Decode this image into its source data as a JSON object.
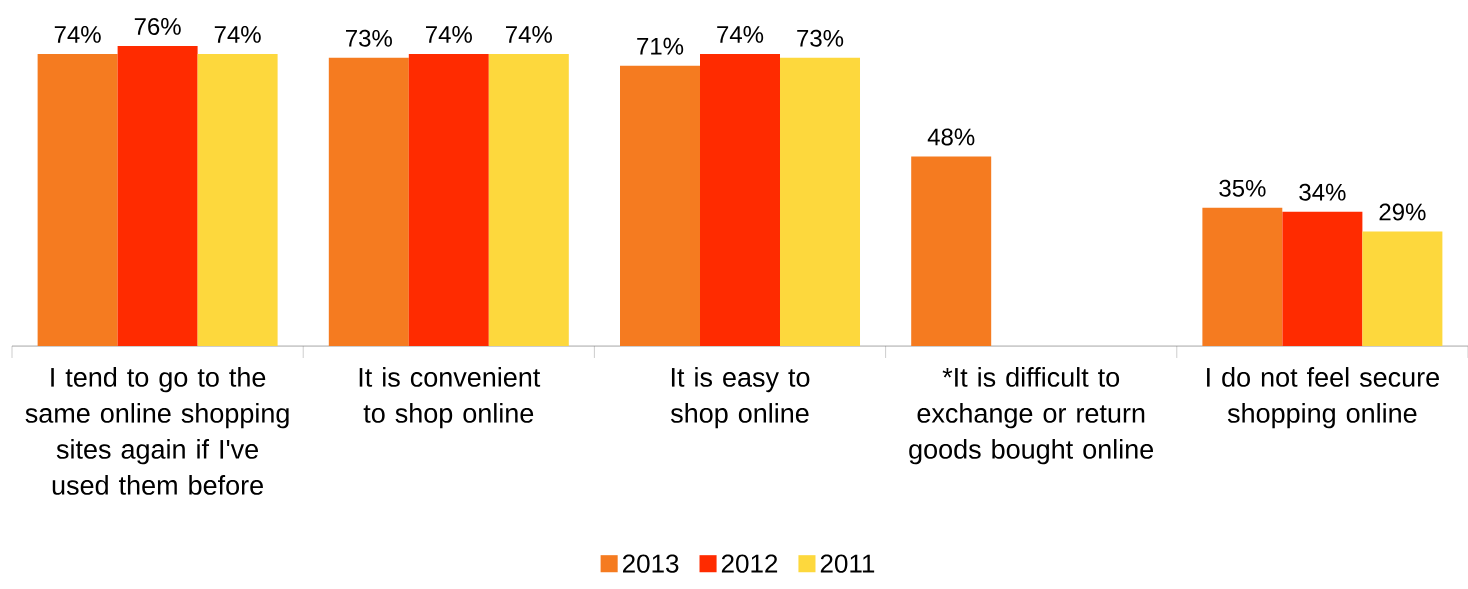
{
  "chart_data": {
    "type": "bar",
    "categories": [
      "I tend to go to the same online shopping sites again if I've used them before",
      "It is convenient to shop online",
      "It is easy to shop online",
      "*It is difficult to exchange or return goods bought online",
      "I do not feel secure shopping online"
    ],
    "series": [
      {
        "name": "2013",
        "color": "#f57b20",
        "values": [
          74,
          73,
          71,
          48,
          35
        ],
        "value_labels": [
          "74%",
          "73%",
          "71%",
          "48%",
          "35%"
        ]
      },
      {
        "name": "2012",
        "color": "#ff2b00",
        "values": [
          76,
          74,
          74,
          null,
          34
        ],
        "value_labels": [
          "76%",
          "74%",
          "74%",
          null,
          "34%"
        ]
      },
      {
        "name": "2011",
        "color": "#fdd83d",
        "values": [
          74,
          74,
          73,
          null,
          29
        ],
        "value_labels": [
          "74%",
          "74%",
          "73%",
          null,
          "29%"
        ]
      }
    ],
    "legend": "bottom"
  }
}
